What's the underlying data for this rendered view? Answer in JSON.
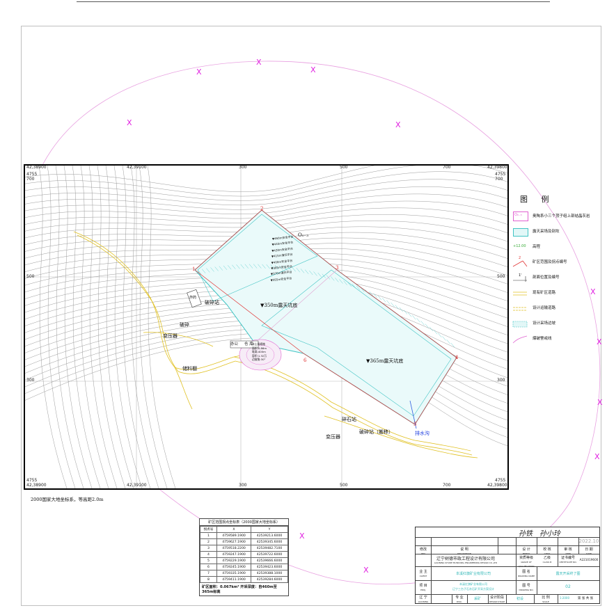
{
  "map": {
    "coords": {
      "top_left": "42,38900",
      "top_x2": "42,39100",
      "top_right": "42,39800",
      "ne_corner_y": "4755",
      "ne_corner_y2": "700",
      "bottom_left": "42,38900",
      "bottom_x2": "42,39100",
      "bottom_right": "42,39800",
      "left_y_top": "4755",
      "left_y_top2": "700",
      "left_y_mid": "500",
      "left_y_low": "300",
      "right_y_mid": "500",
      "right_y_low": "300",
      "bottom_y": "4755",
      "bottom_y2": "500",
      "x_300": "300",
      "x_500": "500",
      "x_700": "700"
    },
    "pit_labels": {
      "upper_pit": "▼350m露天坑底",
      "lower_pit": "▼365m露天坑底",
      "vertex_1": "1",
      "vertex_2": "2",
      "vertex_3": "3",
      "vertex_4": "4",
      "vertex_5": "5",
      "vertex_6": "6"
    },
    "benches": [
      "▼460m安全平台",
      "▼445m安全平台",
      "▼430m安全平台",
      "▼415m清扫平台",
      "▼400m安全平台",
      "▼385m安全平台",
      "▼370m清扫平台",
      "▼355m安全平台"
    ],
    "facilities": {
      "crusher_1": "破碎站",
      "storage": "炸药",
      "office": "办公",
      "transformer": "变压器",
      "powder": "破碎",
      "warehouse": "仓 库",
      "stockpile": "储料棚",
      "transformer_2": "变压器",
      "gravel_station": "碎石站",
      "gravel_move": "破碎站（搬移）",
      "drain": "排水沟",
      "dump": "弃土场",
      "marker": "O₀₋₃"
    },
    "waste_dump_info": [
      "弃土场规格",
      "面积:0.86m",
      "堆高:400m",
      "容积:1.32万",
      "边坡角:30°"
    ],
    "footnote": "2000国家大地坐标系，等高距2.0m"
  },
  "legend": {
    "title": "图  例",
    "items": [
      {
        "symbol": "O₀₋₃",
        "label": "奥陶系小三个顶子组上部结晶灰岩"
      },
      {
        "symbol": "",
        "label": "露天采场及剖坎"
      },
      {
        "symbol": "+12.00",
        "label": "高程"
      },
      {
        "symbol": "2",
        "label": "矿区范围及拐点编号"
      },
      {
        "symbol": "1'",
        "label": "剖面位置及编号"
      },
      {
        "symbol": "",
        "label": "现有矿区道路"
      },
      {
        "symbol": "",
        "label": "设计运输道路"
      },
      {
        "symbol": "",
        "label": "设计采场边坡"
      },
      {
        "symbol": "",
        "label": "爆破警戒线"
      }
    ]
  },
  "coord_table": {
    "title": "矿区范围拐点坐标表（2000国家大地坐标系）",
    "headers": [
      "拐点号",
      "X",
      "Y"
    ],
    "rows": [
      [
        "1",
        "4759589.1900",
        "42539213.6000"
      ],
      [
        "2",
        "4759627.1900",
        "42539345.6000"
      ],
      [
        "3",
        "4759518.2200",
        "42539482.7100"
      ],
      [
        "4",
        "4759247.1900",
        "42539722.6000"
      ],
      [
        "5",
        "4759229.1900",
        "42539666.6000"
      ],
      [
        "6",
        "4759245.1900",
        "42539423.6000"
      ],
      [
        "7",
        "4759335.1900",
        "42539388.1000"
      ],
      [
        "8",
        "4759411.1900",
        "42539284.6000"
      ]
    ],
    "footer": "矿区面积：0.067km²  开采深度：自460m至365m标高"
  },
  "title_block": {
    "sig_1": "孙铁",
    "sig_2": "孙小玲",
    "sig_date": "2022.10",
    "r_labels": [
      "修改",
      "说   明",
      "设 计",
      "校 核",
      "审 核",
      "日 期"
    ],
    "r_labels_en": [
      "REV",
      "DESCRIPTION",
      "PREP'D",
      "CHKD",
      "APPR",
      "DATE"
    ],
    "company": "辽宁树德市政工程设计有限公司",
    "company_en": "LIAONING SHUDE MUNICIPAL ENGINEERING DESIGN CO.,LTD",
    "qual_label": "资质等级",
    "qual_en": "GRADE OF QUALIFICATION",
    "qual_value": "乙级",
    "qual_value_en": "CLASS B",
    "cert_label": "证书编号",
    "cert_en": "CERTIFICATE NO.",
    "cert_no": "A221019600",
    "client_label": "业 主",
    "client_en": "CLIENT",
    "client_value": "本溪红旗矿业有限公司",
    "drawing_name_label": "图 名",
    "drawing_name_en": "DRAWING NAME",
    "drawing_name": "露天开采终了图",
    "project_label": "项 目",
    "project_en": "PROJ.",
    "project_value_1": "本溪红旗矿业有限公司",
    "project_value_2": "辽宁三台子石灰石矿开采方案设计",
    "drawing_no_label": "图 号",
    "drawing_no_en": "DRAWING NO.",
    "drawing_no": "02",
    "bottom": {
      "loc": "辽 宁",
      "loc_en": "LIAONING",
      "major_label": "专 业",
      "major_en": "DISC.",
      "major_value": "采矿",
      "stage_label": "设计阶段",
      "stage_en": "DESIGN STAGE",
      "stage_value": "初设",
      "scale_label": "比 例",
      "scale_en": "SCALE",
      "scale_value": "1:2000",
      "sheet": "第   张   共   张"
    }
  },
  "colors": {
    "contour": "#9a9a9a",
    "elevation_label": "#33aa33",
    "pit_slope": "#40c4c4",
    "road": "#e0c020",
    "boundary": "#e03030",
    "blast_line": "#e060d0",
    "blast_marker": "#e020e0"
  }
}
